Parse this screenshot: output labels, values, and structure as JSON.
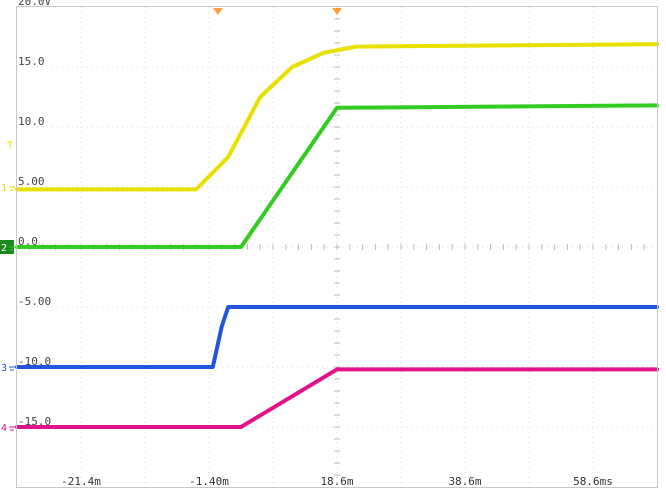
{
  "chart_data": {
    "type": "line",
    "y_tick_labels": [
      "20.0V",
      "15.0",
      "10.0",
      "5.00",
      "0.0",
      "-5.00",
      "-10.0",
      "-15.0"
    ],
    "y_tick_values": [
      20,
      15,
      10,
      5,
      0,
      -5,
      -10,
      -15
    ],
    "ylim": [
      -20,
      20
    ],
    "x_tick_labels": [
      "-21.4m",
      "-1.40m",
      "18.6m",
      "38.6m",
      "58.6ms"
    ],
    "x_tick_values_ms": [
      -21.4,
      -1.4,
      18.6,
      38.6,
      58.6
    ],
    "xlim_ms": [
      -31.4,
      68.6
    ],
    "grid": true,
    "channel_markers": [
      "1",
      "2",
      "3",
      "4"
    ],
    "series": [
      {
        "color": "#e8e000",
        "x": [
          -31.4,
          -3.4,
          1.6,
          6.6,
          11.6,
          16.6,
          21.6,
          68.6
        ],
        "y": [
          4.8,
          4.8,
          7.5,
          12.5,
          15.0,
          16.2,
          16.7,
          16.9
        ]
      },
      {
        "color": "#33cc22",
        "x": [
          -31.4,
          3.6,
          18.6,
          68.6
        ],
        "y": [
          0.0,
          0.0,
          11.6,
          11.8
        ]
      },
      {
        "color": "#2255dd",
        "x": [
          -31.4,
          -0.8,
          0.6,
          1.6,
          68.6
        ],
        "y": [
          -10.0,
          -10.0,
          -6.6,
          -5.0,
          -5.0
        ]
      },
      {
        "color": "#e0148a",
        "x": [
          -31.4,
          3.6,
          18.6,
          68.6
        ],
        "y": [
          -15.0,
          -15.0,
          -10.2,
          -10.2
        ]
      }
    ]
  }
}
